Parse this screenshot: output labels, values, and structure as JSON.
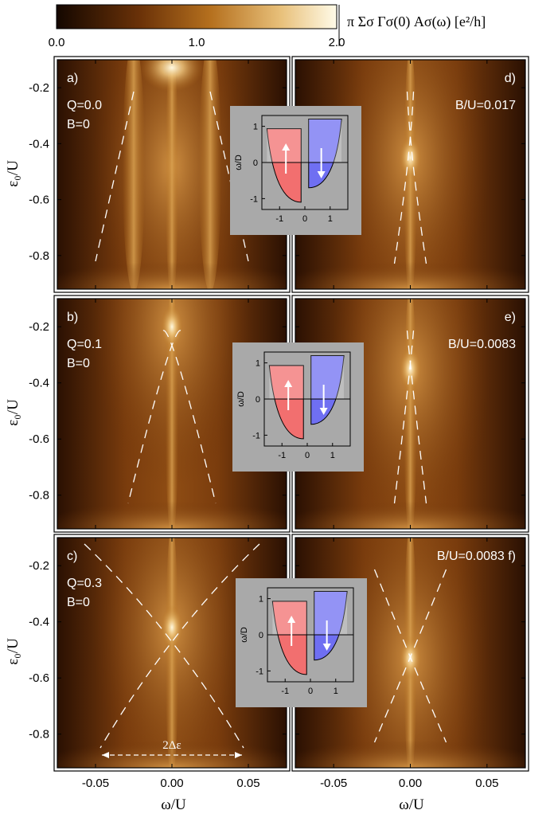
{
  "colorbar": {
    "title": "π Σσ Γσ(0) Aσ(ω) [e²/h]",
    "ticks": [
      "0.0",
      "1.0",
      "2.0"
    ],
    "colors": [
      "#140700",
      "#6b3208",
      "#b5701e",
      "#e8c07a",
      "#fffbe8"
    ]
  },
  "axes": {
    "xlabel": "ω/U",
    "ylabel": "ε₀/U",
    "x_ticks": [
      "-0.05",
      "0.00",
      "0.05"
    ],
    "y_ticks": [
      "-0.2",
      "-0.4",
      "-0.6",
      "-0.8"
    ]
  },
  "panels": {
    "a": {
      "letter": "a)",
      "line1": "Q=0.0",
      "line2": "B=0"
    },
    "b": {
      "letter": "b)",
      "line1": "Q=0.1",
      "line2": "B=0"
    },
    "c": {
      "letter": "c)",
      "line1": "Q=0.3",
      "line2": "B=0",
      "delta": "2Δε"
    },
    "d": {
      "letter": "d)",
      "line1": "B/U=0.017"
    },
    "e": {
      "letter": "e)",
      "line1": "B/U=0.0083"
    },
    "f": {
      "letter": "f)",
      "line1": "B/U=0.0083"
    }
  },
  "insets": {
    "ylabel": "ω/D",
    "y_ticks": [
      "1",
      "0",
      "-1"
    ],
    "x_ticks": [
      "-1",
      "0",
      "1"
    ],
    "spin_up_color": "#f26f6f",
    "spin_down_color": "#6f6ff2",
    "background": "#a9a9a9"
  },
  "chart_data": {
    "type": "heatmap",
    "x_range": [
      -0.075,
      0.075
    ],
    "y_range": [
      -0.92,
      -0.1
    ],
    "z_range": [
      0.0,
      2.0
    ],
    "zero_crossings": {
      "a": {
        "eps": -0.48,
        "half_width": 0.025
      },
      "b": {
        "eps": -0.2,
        "half_width": 0.0
      },
      "c": {
        "eps": -0.42,
        "half_width": 0.0
      },
      "d": {
        "eps": -0.45,
        "half_width": 0.0
      },
      "e": {
        "eps": -0.35,
        "half_width": 0.0
      },
      "f": {
        "eps": -0.53,
        "half_width": 0.0
      }
    }
  }
}
